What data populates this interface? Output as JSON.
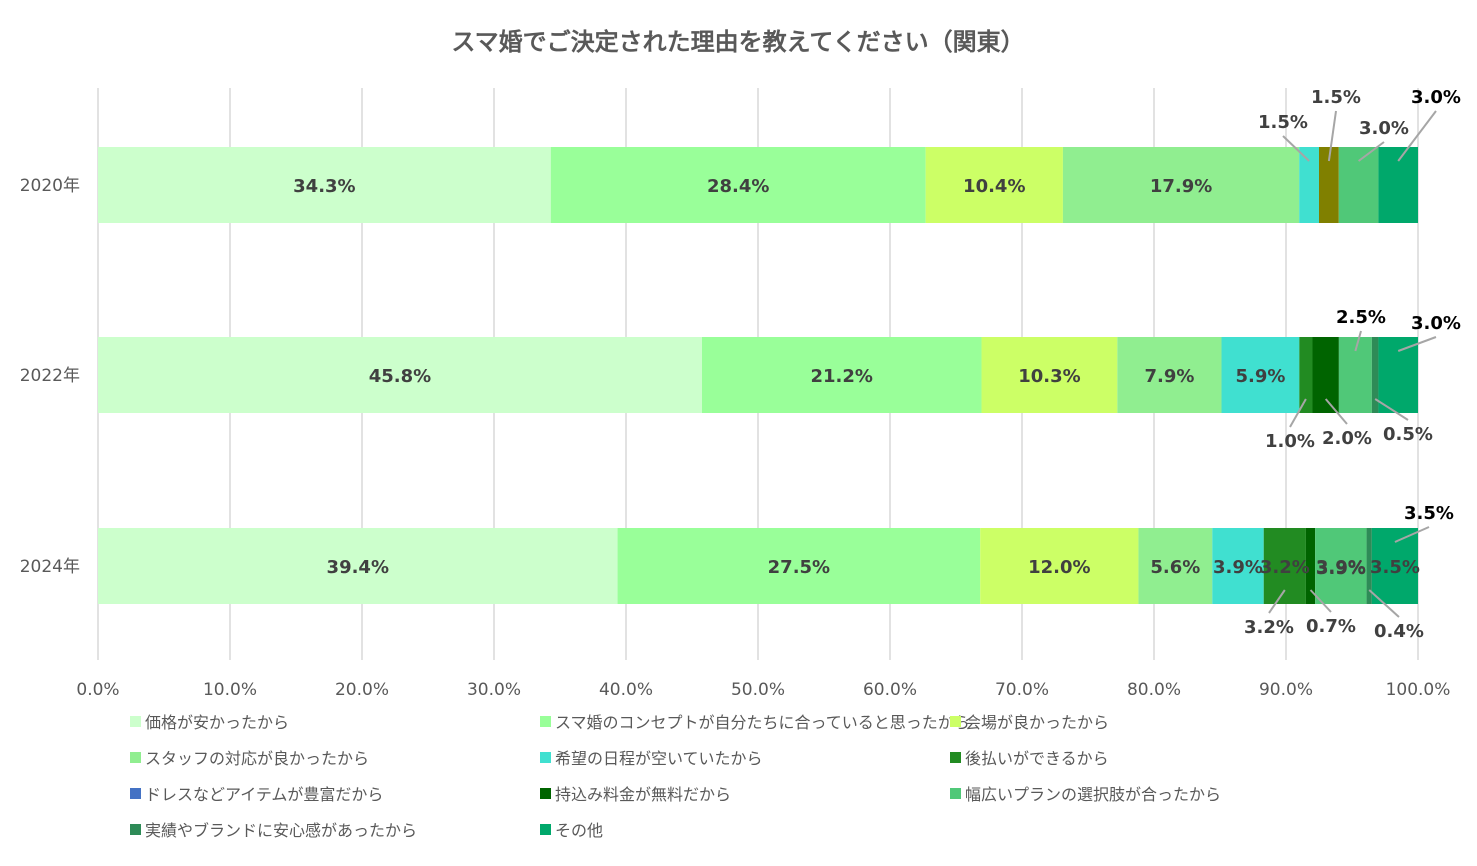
{
  "chart_data": {
    "type": "bar",
    "orientation": "horizontal",
    "stacked": true,
    "title": "スマ婚でご決定された理由を教えてください（関東）",
    "categories": [
      "2020年",
      "2022年",
      "2024年"
    ],
    "xlim": [
      0,
      100
    ],
    "xticks": [
      "0.0%",
      "10.0%",
      "20.0%",
      "30.0%",
      "40.0%",
      "50.0%",
      "60.0%",
      "70.0%",
      "80.0%",
      "90.0%",
      "100.0%"
    ],
    "grid": true,
    "legend_position": "bottom",
    "series": [
      {
        "name": "価格が安かったから",
        "color": "#ccffcc",
        "values": [
          34.3,
          45.8,
          39.4
        ],
        "labels": [
          "34.3%",
          "45.8%",
          "39.4%"
        ]
      },
      {
        "name": "スマ婚のコンセプトが自分たちに合っていると思ったから",
        "color": "#99ff99",
        "values": [
          28.4,
          21.2,
          27.5
        ],
        "labels": [
          "28.4%",
          "21.2%",
          "27.5%"
        ]
      },
      {
        "name": "会場が良かったから",
        "color": "#ccff66",
        "values": [
          10.4,
          10.3,
          12.0
        ],
        "labels": [
          "10.4%",
          "10.3%",
          "12.0%"
        ]
      },
      {
        "name": "スタッフの対応が良かったから",
        "color": "#90ee90",
        "values": [
          17.9,
          7.9,
          5.6
        ],
        "labels": [
          "17.9%",
          "7.9%",
          "5.6%"
        ]
      },
      {
        "name": "希望の日程が空いていたから",
        "color": "#40e0d0",
        "values": [
          1.5,
          5.9,
          3.9
        ],
        "labels": [
          "1.5%",
          "5.9%",
          "3.9%"
        ]
      },
      {
        "name": "後払いができるから",
        "color": "#228b22",
        "values": [
          0,
          1.0,
          3.2
        ],
        "labels": [
          "",
          "1.0%",
          "3.2%"
        ]
      },
      {
        "name": "ドレスなどアイテムが豊富だから",
        "color": "#4472c4",
        "values": [
          0,
          0,
          0
        ],
        "labels": [
          "",
          "",
          ""
        ]
      },
      {
        "name": "持込み料金が無料だから",
        "color": "#006400",
        "values": [
          1.5,
          2.0,
          0.7
        ],
        "labels": [
          "1.5%",
          "2.0%",
          "0.7%"
        ]
      },
      {
        "name": "幅広いプランの選択肢が合ったから",
        "color": "#50c878",
        "values": [
          3.0,
          2.5,
          3.9
        ],
        "labels": [
          "3.0%",
          "2.5%",
          "3.9%"
        ]
      },
      {
        "name": "実績やブランドに安心感があったから",
        "color": "#2e8b57",
        "values": [
          0,
          0.5,
          0.4
        ],
        "labels": [
          "",
          "0.5%",
          "0.4%"
        ]
      },
      {
        "name": "その他",
        "color": "#00a86b",
        "values": [
          3.0,
          3.0,
          3.5
        ],
        "labels": [
          "3.0%",
          "3.0%",
          "3.5%"
        ]
      }
    ],
    "special_colors": {
      "olive_2020": "#808000"
    }
  }
}
